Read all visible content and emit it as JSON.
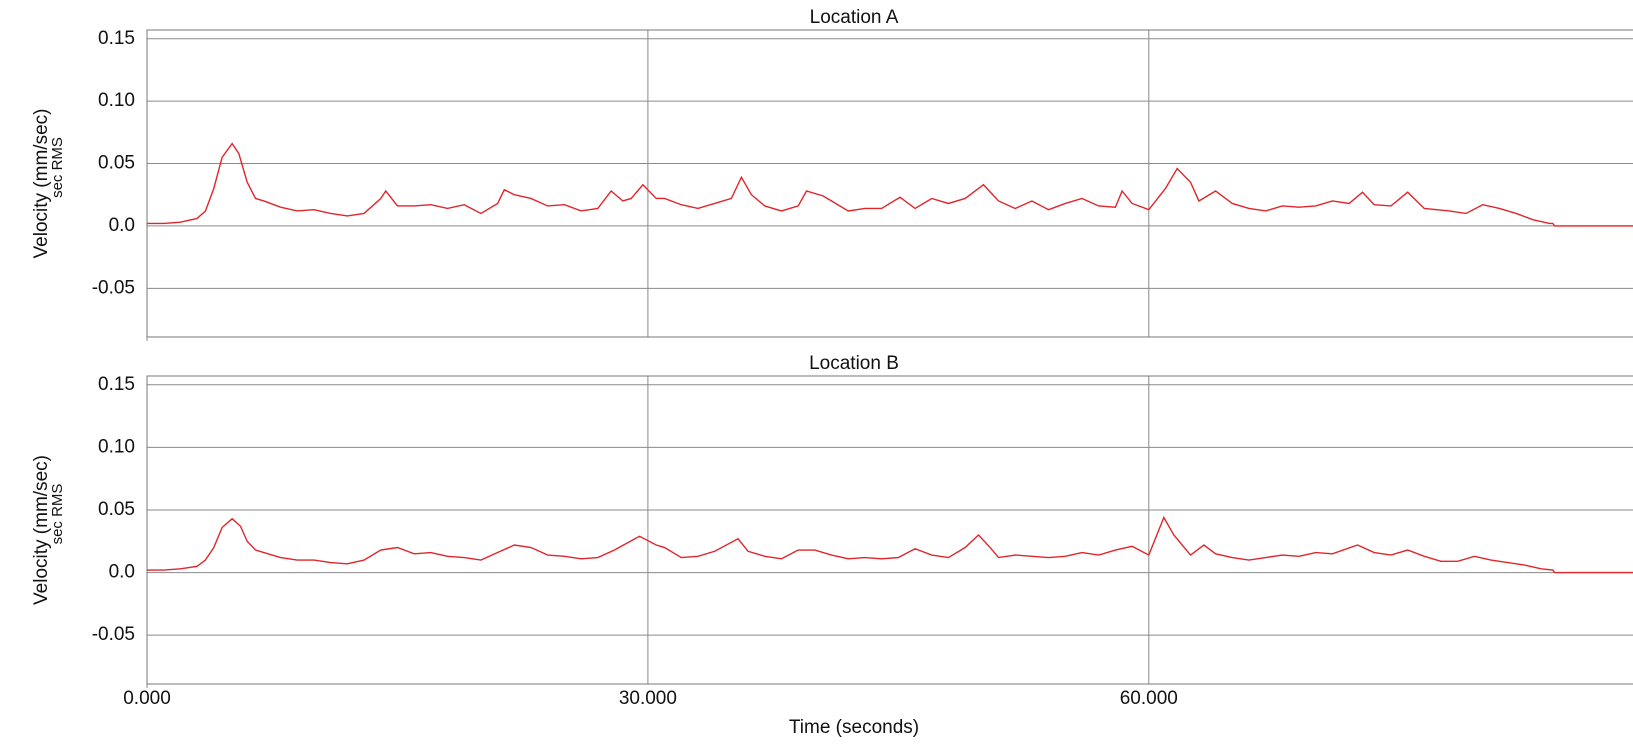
{
  "chart_data": [
    {
      "type": "line",
      "title": "Location A",
      "ylabel": "Velocity (mm/sec)",
      "ylabel_sub": "sec RMS",
      "x": [
        0,
        1,
        2,
        3,
        3.5,
        4,
        4.5,
        5.1,
        5.5,
        6,
        6.5,
        7,
        8,
        9,
        10,
        11,
        12,
        13,
        14,
        14.3,
        15,
        16,
        17,
        18,
        19,
        20,
        21,
        21.4,
        22,
        23,
        24,
        25,
        26,
        27,
        27.8,
        28.5,
        29,
        29.7,
        30.5,
        31,
        32,
        33,
        34,
        35,
        35.6,
        36.2,
        37,
        38,
        39,
        39.5,
        40.5,
        41,
        42,
        43,
        44,
        45.1,
        46,
        47,
        48,
        49,
        50.1,
        51,
        52,
        53,
        54,
        55,
        56,
        57,
        58,
        58.4,
        59,
        60,
        61,
        61.7,
        62.5,
        63,
        64,
        65,
        66,
        67,
        68,
        69,
        70,
        71,
        72,
        72.8,
        73.5,
        74.5,
        75.5,
        76.5,
        78,
        79,
        80,
        81,
        82,
        83,
        84,
        84.2,
        84.3,
        89
      ],
      "series": [
        {
          "name": "Location A",
          "color": "#e0262b",
          "values": [
            0.002,
            0.002,
            0.003,
            0.006,
            0.012,
            0.03,
            0.055,
            0.066,
            0.058,
            0.035,
            0.022,
            0.02,
            0.015,
            0.012,
            0.013,
            0.01,
            0.008,
            0.01,
            0.022,
            0.028,
            0.016,
            0.016,
            0.017,
            0.014,
            0.017,
            0.01,
            0.018,
            0.029,
            0.025,
            0.022,
            0.016,
            0.017,
            0.012,
            0.014,
            0.028,
            0.02,
            0.022,
            0.033,
            0.022,
            0.022,
            0.017,
            0.014,
            0.018,
            0.022,
            0.039,
            0.025,
            0.016,
            0.012,
            0.016,
            0.028,
            0.024,
            0.02,
            0.012,
            0.014,
            0.014,
            0.023,
            0.014,
            0.022,
            0.018,
            0.022,
            0.033,
            0.02,
            0.014,
            0.02,
            0.013,
            0.018,
            0.022,
            0.016,
            0.015,
            0.028,
            0.018,
            0.013,
            0.03,
            0.046,
            0.035,
            0.02,
            0.028,
            0.018,
            0.014,
            0.012,
            0.016,
            0.015,
            0.016,
            0.02,
            0.018,
            0.027,
            0.017,
            0.016,
            0.027,
            0.014,
            0.012,
            0.01,
            0.017,
            0.014,
            0.01,
            0.005,
            0.002,
            0.002,
            0,
            0
          ]
        }
      ],
      "xlim": [
        0,
        89
      ],
      "xticks": [
        0,
        30,
        60
      ],
      "ylim": [
        -0.089,
        0.157
      ],
      "yticks": [
        0.15,
        {
          "value": 0.1,
          "label": "0.10"
        },
        0.05,
        {
          "value": 0,
          "label": "0.0"
        },
        -0.05
      ],
      "grid": true
    },
    {
      "type": "line",
      "title": "Location B",
      "ylabel": "Velocity (mm/sec)",
      "ylabel_sub": "sec RMS",
      "xlabel": "Time (seconds)",
      "x": [
        0,
        1,
        2,
        3,
        3.5,
        4,
        4.5,
        5.1,
        5.6,
        6,
        6.5,
        7,
        8,
        9,
        10,
        11,
        12,
        13,
        14,
        15,
        16,
        17,
        18,
        19,
        20,
        21,
        22,
        23,
        24,
        25,
        26,
        27,
        28,
        29.5,
        30.5,
        31,
        32,
        33,
        34,
        35.4,
        36,
        37,
        38,
        39,
        40,
        41,
        42,
        43,
        44,
        45,
        46,
        47,
        48,
        49,
        49.8,
        50.5,
        51,
        52,
        53,
        54,
        55,
        56,
        57,
        58,
        59,
        60,
        60.9,
        61.5,
        62.5,
        63.3,
        64,
        65,
        66,
        67,
        68,
        69,
        70,
        71,
        72.5,
        73.5,
        74.5,
        75.5,
        76.5,
        77.5,
        78.5,
        79.5,
        80.5,
        81.5,
        82.5,
        83.5,
        84.2,
        84.3,
        89
      ],
      "series": [
        {
          "name": "Location B",
          "color": "#e0262b",
          "values": [
            0.002,
            0.002,
            0.003,
            0.005,
            0.01,
            0.02,
            0.036,
            0.043,
            0.037,
            0.025,
            0.018,
            0.016,
            0.012,
            0.01,
            0.01,
            0.008,
            0.007,
            0.01,
            0.018,
            0.02,
            0.015,
            0.016,
            0.013,
            0.012,
            0.01,
            0.016,
            0.022,
            0.02,
            0.014,
            0.013,
            0.011,
            0.012,
            0.018,
            0.029,
            0.022,
            0.02,
            0.012,
            0.013,
            0.017,
            0.027,
            0.017,
            0.013,
            0.011,
            0.018,
            0.018,
            0.014,
            0.011,
            0.012,
            0.011,
            0.012,
            0.019,
            0.014,
            0.012,
            0.02,
            0.03,
            0.02,
            0.012,
            0.014,
            0.013,
            0.012,
            0.013,
            0.016,
            0.014,
            0.018,
            0.021,
            0.014,
            0.044,
            0.03,
            0.014,
            0.022,
            0.015,
            0.012,
            0.01,
            0.012,
            0.014,
            0.013,
            0.016,
            0.015,
            0.022,
            0.016,
            0.014,
            0.018,
            0.013,
            0.009,
            0.009,
            0.013,
            0.01,
            0.008,
            0.006,
            0.003,
            0.002,
            0,
            0
          ]
        }
      ],
      "xlim": [
        0,
        89
      ],
      "xticks": [
        {
          "value": 0,
          "label": "0.000"
        },
        {
          "value": 30,
          "label": "30.000"
        },
        {
          "value": 60,
          "label": "60.000"
        }
      ],
      "ylim": [
        -0.089,
        0.157
      ],
      "yticks": [
        0.15,
        {
          "value": 0.1,
          "label": "0.10"
        },
        0.05,
        {
          "value": 0,
          "label": "0.0"
        },
        -0.05
      ],
      "grid": true
    }
  ]
}
